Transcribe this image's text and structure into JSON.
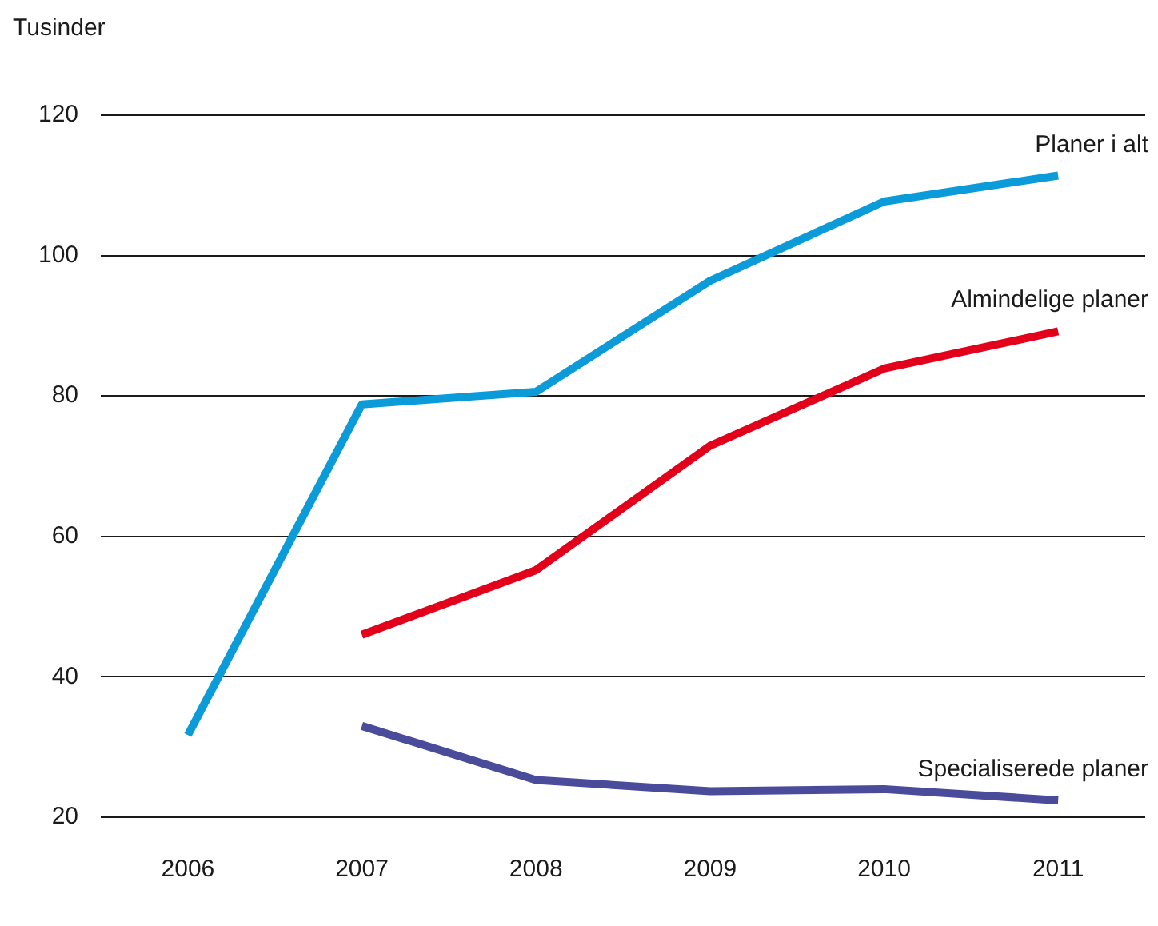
{
  "chart_data": {
    "type": "line",
    "ylabel": "Tusinder",
    "categories": [
      "2006",
      "2007",
      "2008",
      "2009",
      "2010",
      "2011"
    ],
    "series": [
      {
        "name": "Planer i alt",
        "color": "#0a9bd8",
        "values": [
          31.7,
          78.8,
          80.6,
          96.4,
          107.7,
          111.4
        ]
      },
      {
        "name": "Almindelige planer",
        "color": "#e3001b",
        "values": [
          null,
          46.0,
          55.2,
          72.9,
          83.9,
          89.2
        ]
      },
      {
        "name": "Specialiserede planer",
        "color": "#4b4b9b",
        "values": [
          null,
          33.0,
          25.3,
          23.7,
          24.0,
          22.4
        ]
      }
    ],
    "ylim": [
      20,
      120
    ],
    "yticks": [
      20,
      40,
      60,
      80,
      100,
      120
    ],
    "grid": "y",
    "legend": false,
    "marker": "none",
    "line_style": "solid"
  }
}
